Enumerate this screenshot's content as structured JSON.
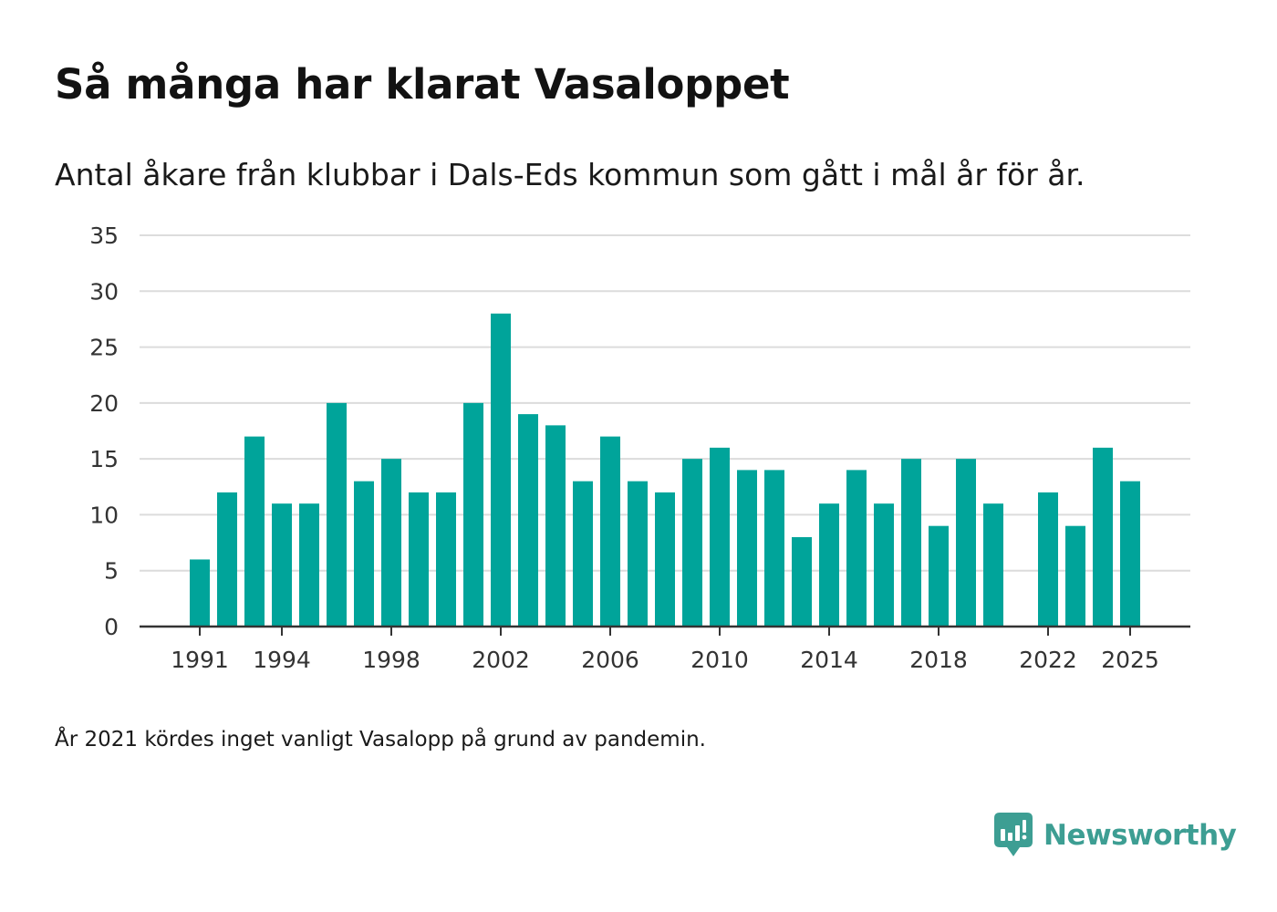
{
  "chart_data": {
    "type": "bar",
    "title": "Så många har klarat Vasaloppet",
    "subtitle": "Antal åkare från klubbar i Dals-Eds kommun som gått i mål år för år.",
    "xlabel": "",
    "ylabel": "",
    "ylim": [
      0,
      35
    ],
    "yticks": [
      0,
      5,
      10,
      15,
      20,
      25,
      30,
      35
    ],
    "xticks": [
      1991,
      1994,
      1998,
      2002,
      2006,
      2010,
      2014,
      2018,
      2022,
      2025
    ],
    "grid": true,
    "legend": "none",
    "bar_color": "#00a49a",
    "categories": [
      1991,
      1992,
      1993,
      1994,
      1995,
      1996,
      1997,
      1998,
      1999,
      2000,
      2001,
      2002,
      2003,
      2004,
      2005,
      2006,
      2007,
      2008,
      2009,
      2010,
      2011,
      2012,
      2013,
      2014,
      2015,
      2016,
      2017,
      2018,
      2019,
      2020,
      2021,
      2022,
      2023,
      2024,
      2025
    ],
    "values": [
      6,
      12,
      17,
      11,
      11,
      20,
      13,
      15,
      12,
      12,
      20,
      28,
      19,
      18,
      13,
      17,
      13,
      12,
      15,
      16,
      14,
      14,
      8,
      11,
      14,
      11,
      15,
      9,
      15,
      11,
      null,
      12,
      9,
      16,
      13
    ]
  },
  "footnote": "År 2021 kördes inget vanligt Vasalopp på grund av pandemin.",
  "brand": {
    "name": "Newsworthy",
    "icon": "newsworthy-logo-icon",
    "color": "#3d9e93"
  }
}
